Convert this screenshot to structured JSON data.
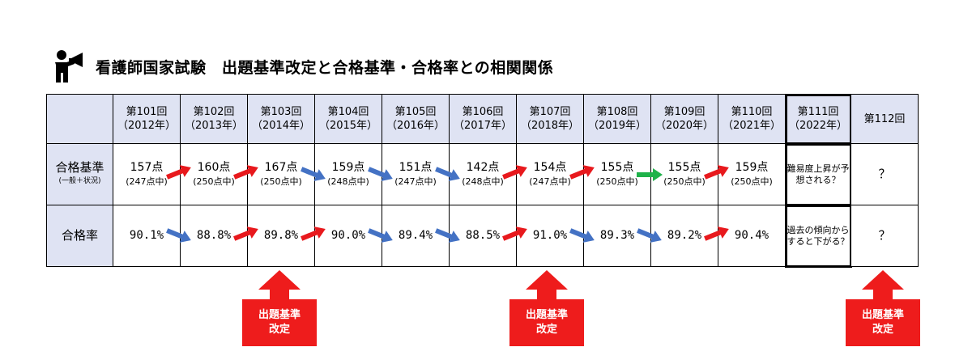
{
  "title": "看護師国家試験　出題基準改定と合格基準・合格率との相関関係",
  "header_icon": "presenter-megaphone-icon",
  "columns": [
    {
      "label": "第101回",
      "year": "（2012年）"
    },
    {
      "label": "第102回",
      "year": "（2013年）"
    },
    {
      "label": "第103回",
      "year": "（2014年）"
    },
    {
      "label": "第104回",
      "year": "（2015年）"
    },
    {
      "label": "第105回",
      "year": "（2016年）"
    },
    {
      "label": "第106回",
      "year": "（2017年）"
    },
    {
      "label": "第107回",
      "year": "（2018年）"
    },
    {
      "label": "第108回",
      "year": "（2019年）"
    },
    {
      "label": "第109回",
      "year": "（2020年）"
    },
    {
      "label": "第110回",
      "year": "（2021年）"
    },
    {
      "label": "第111回",
      "year": "（2022年）"
    },
    {
      "label": "第112回",
      "year": ""
    }
  ],
  "row_pass_standard": {
    "label": "合格基準",
    "sublabel": "(一般＋状況)",
    "values": [
      {
        "score": "157点",
        "total": "(247点中)"
      },
      {
        "score": "160点",
        "total": "(250点中)"
      },
      {
        "score": "167点",
        "total": "(250点中)"
      },
      {
        "score": "159点",
        "total": "(248点中)"
      },
      {
        "score": "151点",
        "total": "(247点中)"
      },
      {
        "score": "142点",
        "total": "(248点中)"
      },
      {
        "score": "154点",
        "total": "(247点中)"
      },
      {
        "score": "155点",
        "total": "(250点中)"
      },
      {
        "score": "155点",
        "total": "(250点中)"
      },
      {
        "score": "159点",
        "total": "(250点中)"
      }
    ],
    "trends": [
      "",
      "up",
      "up",
      "down",
      "down",
      "down",
      "up",
      "up",
      "flat",
      "up"
    ],
    "note_111": "難易度上昇が予想される？",
    "q_112": "？"
  },
  "row_pass_rate": {
    "label": "合格率",
    "values": [
      "90.1%",
      "88.8%",
      "89.8%",
      "90.0%",
      "89.4%",
      "88.5%",
      "91.0%",
      "89.3%",
      "89.2%",
      "90.4%"
    ],
    "trends": [
      "",
      "down",
      "up",
      "up",
      "down",
      "down",
      "up",
      "down",
      "down",
      "up"
    ],
    "note_111": "過去の傾向からすると下がる？",
    "q_112": "？"
  },
  "callouts": [
    {
      "text": "出題基準\n改定"
    },
    {
      "text": "出題基準\n改定"
    },
    {
      "text": "出題基準\n改定"
    }
  ],
  "colors": {
    "up": "#e8191d",
    "down": "#4472c4",
    "flat": "#1fb24a",
    "callout": "#ee1c1c",
    "header_fill": "#dfe3f3"
  }
}
